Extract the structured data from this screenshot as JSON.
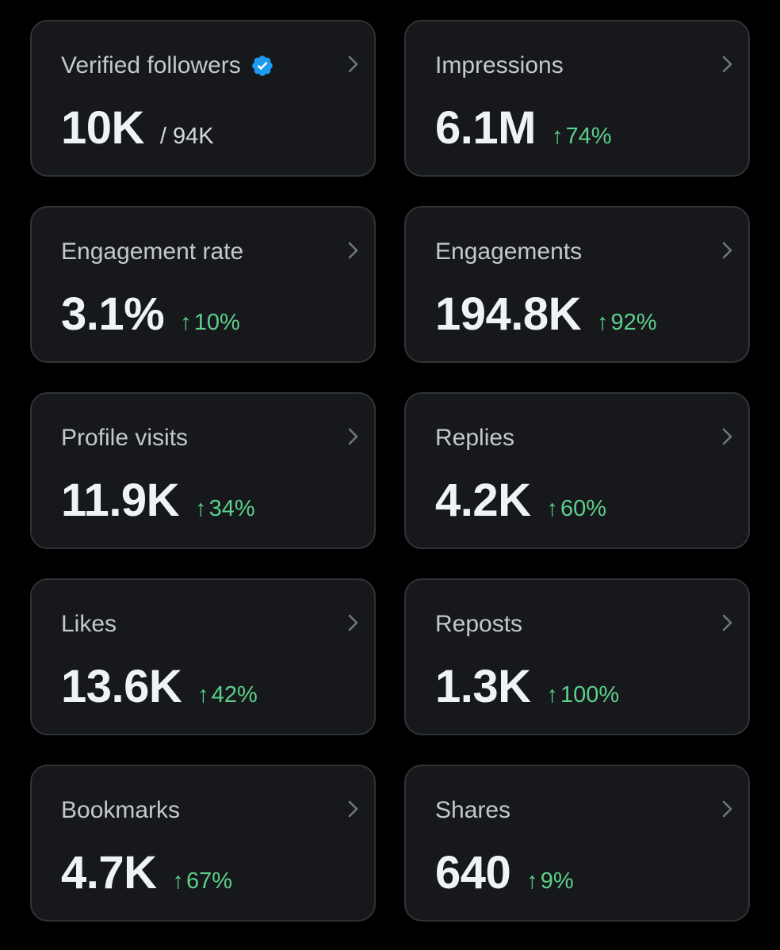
{
  "colors": {
    "background": "#000000",
    "card": "#16181c",
    "card_border": "#2f3336",
    "label": "#c4c8cc",
    "value": "#eff3f4",
    "positive": "#5ccf8a",
    "verified_blue": "#1d9bf0"
  },
  "cards": [
    {
      "label": "Verified followers",
      "value": "10K",
      "sub": "/ 94K",
      "verified_icon": "verified-badge-icon"
    },
    {
      "label": "Impressions",
      "value": "6.1M",
      "delta": "74%",
      "arrow": "↑"
    },
    {
      "label": "Engagement rate",
      "value": "3.1%",
      "delta": "10%",
      "arrow": "↑"
    },
    {
      "label": "Engagements",
      "value": "194.8K",
      "delta": "92%",
      "arrow": "↑"
    },
    {
      "label": "Profile visits",
      "value": "11.9K",
      "delta": "34%",
      "arrow": "↑"
    },
    {
      "label": "Replies",
      "value": "4.2K",
      "delta": "60%",
      "arrow": "↑"
    },
    {
      "label": "Likes",
      "value": "13.6K",
      "delta": "42%",
      "arrow": "↑"
    },
    {
      "label": "Reposts",
      "value": "1.3K",
      "delta": "100%",
      "arrow": "↑"
    },
    {
      "label": "Bookmarks",
      "value": "4.7K",
      "delta": "67%",
      "arrow": "↑"
    },
    {
      "label": "Shares",
      "value": "640",
      "delta": "9%",
      "arrow": "↑"
    }
  ]
}
